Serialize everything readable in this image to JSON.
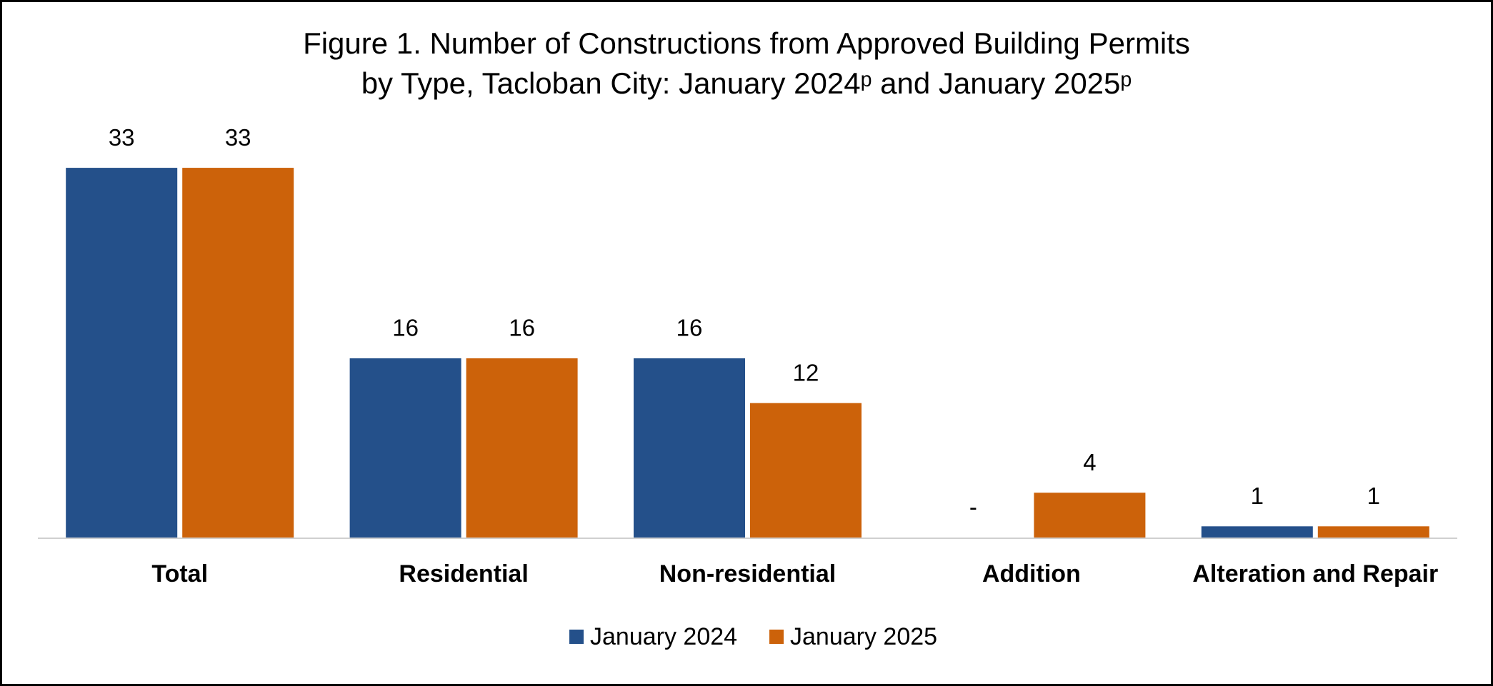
{
  "chart_data": {
    "type": "bar",
    "title_lines": [
      "Figure 1. Number of Constructions from Approved Building Permits",
      "by Type, Tacloban City: January 2024ᵖ and January 2025ᵖ"
    ],
    "categories": [
      "Total",
      "Residential",
      "Non-residential",
      "Addition",
      "Alteration and Repair"
    ],
    "series": [
      {
        "name": "January 2024",
        "color": "#24508a",
        "values": [
          33,
          16,
          16,
          0,
          1
        ],
        "value_labels": [
          "33",
          "16",
          "16",
          "-",
          "1"
        ]
      },
      {
        "name": "January 2025",
        "color": "#cc620a",
        "values": [
          33,
          16,
          12,
          4,
          1
        ]
      }
    ],
    "ylim": [
      0,
      36
    ],
    "grid": false,
    "legend": "bottom"
  }
}
